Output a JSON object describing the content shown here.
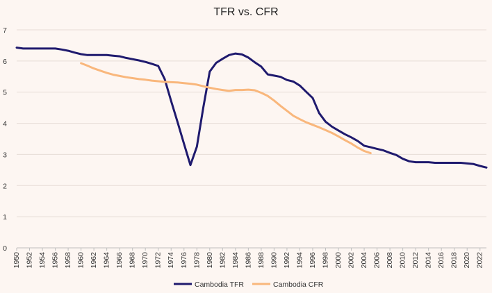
{
  "chart_data": {
    "type": "line",
    "title": "TFR vs. CFR",
    "xlabel": "",
    "ylabel": "",
    "xlim": [
      1950,
      2023
    ],
    "ylim": [
      0,
      7
    ],
    "yticks": [
      0,
      1,
      2,
      3,
      4,
      5,
      6,
      7
    ],
    "xticks": [
      1950,
      1952,
      1954,
      1956,
      1958,
      1960,
      1962,
      1964,
      1966,
      1968,
      1970,
      1972,
      1974,
      1976,
      1978,
      1980,
      1982,
      1984,
      1986,
      1988,
      1990,
      1992,
      1994,
      1996,
      1998,
      2000,
      2002,
      2004,
      2006,
      2008,
      2010,
      2012,
      2014,
      2016,
      2018,
      2020,
      2022
    ],
    "grid": true,
    "legend_position": "bottom",
    "series": [
      {
        "name": "Cambodia TFR",
        "color": "#1f1a6e",
        "x": [
          1950,
          1951,
          1952,
          1953,
          1954,
          1955,
          1956,
          1957,
          1958,
          1959,
          1960,
          1961,
          1962,
          1963,
          1964,
          1965,
          1966,
          1967,
          1968,
          1969,
          1970,
          1971,
          1972,
          1973,
          1974,
          1975,
          1976,
          1977,
          1978,
          1979,
          1980,
          1981,
          1982,
          1983,
          1984,
          1985,
          1986,
          1987,
          1988,
          1989,
          1990,
          1991,
          1992,
          1993,
          1994,
          1995,
          1996,
          1997,
          1998,
          1999,
          2000,
          2001,
          2002,
          2003,
          2004,
          2005,
          2006,
          2007,
          2008,
          2009,
          2010,
          2011,
          2012,
          2013,
          2014,
          2015,
          2016,
          2017,
          2018,
          2019,
          2020,
          2021,
          2022,
          2023
        ],
        "values": [
          6.43,
          6.4,
          6.4,
          6.4,
          6.4,
          6.4,
          6.4,
          6.37,
          6.33,
          6.27,
          6.22,
          6.19,
          6.19,
          6.19,
          6.19,
          6.17,
          6.15,
          6.1,
          6.06,
          6.02,
          5.97,
          5.91,
          5.84,
          5.42,
          4.72,
          4.04,
          3.34,
          2.66,
          3.25,
          4.5,
          5.66,
          5.94,
          6.07,
          6.19,
          6.24,
          6.21,
          6.11,
          5.96,
          5.82,
          5.57,
          5.53,
          5.49,
          5.39,
          5.34,
          5.21,
          5.01,
          4.81,
          4.33,
          4.05,
          3.89,
          3.77,
          3.65,
          3.55,
          3.43,
          3.28,
          3.23,
          3.18,
          3.13,
          3.05,
          2.98,
          2.86,
          2.78,
          2.75,
          2.75,
          2.75,
          2.73,
          2.73,
          2.73,
          2.73,
          2.73,
          2.71,
          2.69,
          2.63,
          2.58
        ]
      },
      {
        "name": "Cambodia CFR",
        "color": "#f9b77c",
        "x": [
          1960,
          1961,
          1962,
          1963,
          1964,
          1965,
          1966,
          1967,
          1968,
          1969,
          1970,
          1971,
          1972,
          1973,
          1974,
          1975,
          1976,
          1977,
          1978,
          1979,
          1980,
          1981,
          1982,
          1983,
          1984,
          1985,
          1986,
          1987,
          1988,
          1989,
          1990,
          1991,
          1992,
          1993,
          1994,
          1995,
          1996,
          1997,
          1998,
          1999,
          2000,
          2001,
          2002,
          2003,
          2004,
          2005
        ],
        "values": [
          5.93,
          5.85,
          5.76,
          5.69,
          5.62,
          5.56,
          5.52,
          5.48,
          5.45,
          5.42,
          5.4,
          5.37,
          5.35,
          5.33,
          5.32,
          5.31,
          5.29,
          5.27,
          5.24,
          5.19,
          5.14,
          5.1,
          5.07,
          5.04,
          5.07,
          5.07,
          5.08,
          5.06,
          4.98,
          4.88,
          4.73,
          4.56,
          4.4,
          4.24,
          4.13,
          4.03,
          3.95,
          3.87,
          3.78,
          3.69,
          3.58,
          3.46,
          3.35,
          3.22,
          3.11,
          3.04
        ]
      }
    ]
  }
}
